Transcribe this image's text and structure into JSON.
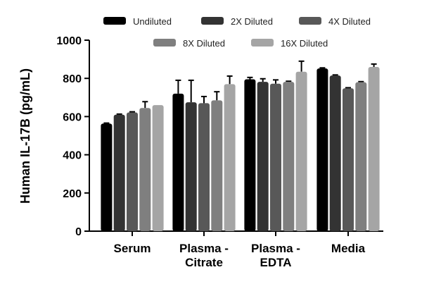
{
  "chart_data": {
    "type": "bar",
    "ylabel": "Human IL-17B (pg/mL)",
    "ylim": [
      0,
      1000
    ],
    "yticks": [
      0,
      200,
      400,
      600,
      800,
      1000
    ],
    "categories": [
      "Serum",
      "Plasma -\nCitrate",
      "Plasma -\nEDTA",
      "Media"
    ],
    "legend_position": "top",
    "series": [
      {
        "name": "Undiluted",
        "color": "#000000",
        "values": [
          563,
          720,
          795,
          852
        ],
        "errors": [
          3,
          70,
          10,
          3
        ]
      },
      {
        "name": "2X Diluted",
        "color": "#333333",
        "values": [
          610,
          675,
          782,
          815
        ],
        "errors": [
          3,
          115,
          16,
          3
        ]
      },
      {
        "name": "4X Diluted",
        "color": "#585858",
        "values": [
          622,
          670,
          772,
          748
        ],
        "errors": [
          3,
          35,
          20,
          3
        ]
      },
      {
        "name": "8X Diluted",
        "color": "#7f7f7f",
        "values": [
          645,
          685,
          782,
          780
        ],
        "errors": [
          33,
          45,
          3,
          3
        ]
      },
      {
        "name": "16X Diluted",
        "color": "#a5a5a5",
        "values": [
          660,
          770,
          835,
          860
        ],
        "errors": [
          0,
          42,
          55,
          15
        ]
      }
    ]
  }
}
